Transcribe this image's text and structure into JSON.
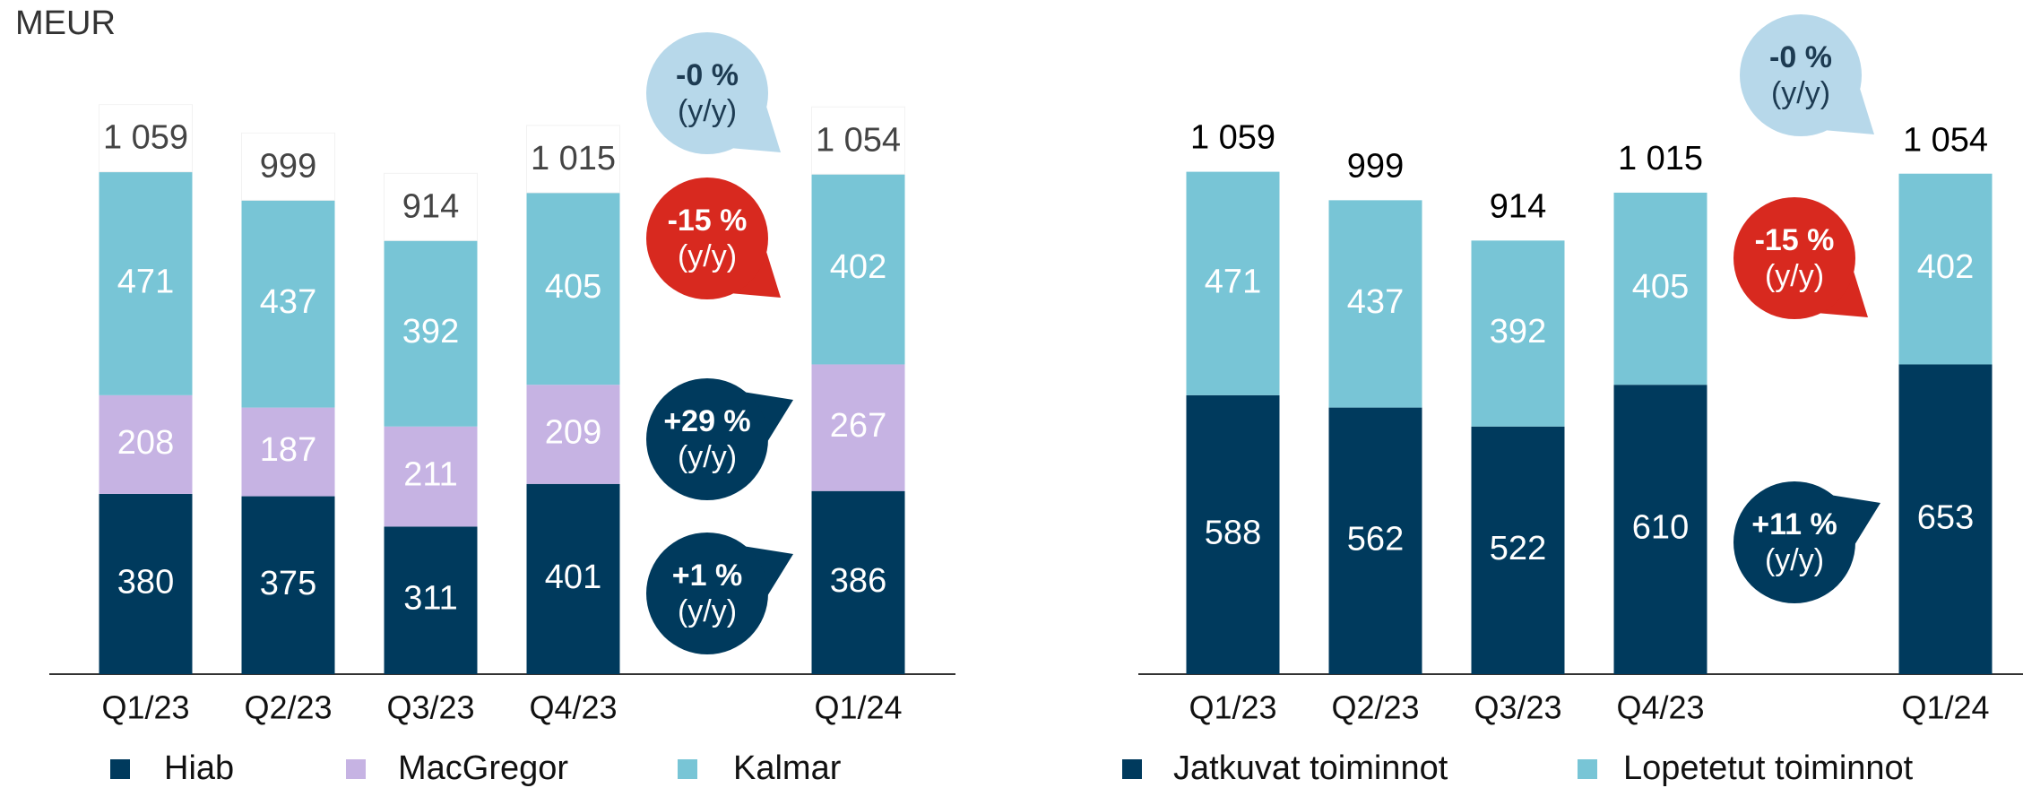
{
  "unit_label": "MEUR",
  "chart_data": [
    {
      "type": "stacked_bar",
      "categories": [
        "Q1/23",
        "Q2/23",
        "Q3/23",
        "Q4/23",
        null,
        "Q1/24"
      ],
      "series": [
        {
          "name": "Hiab",
          "color": "#003a5d",
          "values": [
            380,
            375,
            311,
            401,
            null,
            386
          ]
        },
        {
          "name": "MacGregor",
          "color": "#c6b3e3",
          "values": [
            208,
            187,
            211,
            209,
            null,
            267
          ]
        },
        {
          "name": "Kalmar",
          "color": "#78c5d6",
          "values": [
            471,
            437,
            392,
            405,
            null,
            402
          ]
        }
      ],
      "totals": [
        1059,
        999,
        914,
        1015,
        null,
        1054
      ],
      "total_labels": [
        "1 059",
        "999",
        "914",
        "1 015",
        null,
        "1 054"
      ],
      "ylim": [
        0,
        1200
      ],
      "annotations": [
        {
          "text": "-0 %",
          "subtext": "(y/y)",
          "color": "#b7d8ea"
        },
        {
          "text": "-15 %",
          "subtext": "(y/y)",
          "color": "#d8291f"
        },
        {
          "text": "+29 %",
          "subtext": "(y/y)",
          "color": "#003a5d"
        },
        {
          "text": "+1 %",
          "subtext": "(y/y)",
          "color": "#003a5d"
        }
      ]
    },
    {
      "type": "stacked_bar",
      "categories": [
        "Q1/23",
        "Q2/23",
        "Q3/23",
        "Q4/23",
        null,
        "Q1/24"
      ],
      "series": [
        {
          "name": "Jatkuvat toiminnot",
          "color": "#003a5d",
          "values": [
            588,
            562,
            522,
            610,
            null,
            653
          ]
        },
        {
          "name": "Lopetetut toiminnot",
          "color": "#78c5d6",
          "values": [
            471,
            437,
            392,
            405,
            null,
            402
          ]
        }
      ],
      "totals": [
        1059,
        999,
        914,
        1015,
        null,
        1054
      ],
      "total_labels": [
        "1 059",
        "999",
        "914",
        "1 015",
        null,
        "1 054"
      ],
      "ylim": [
        0,
        1200
      ],
      "annotations": [
        {
          "text": "-0 %",
          "subtext": "(y/y)",
          "color": "#b7d8ea"
        },
        {
          "text": "-15 %",
          "subtext": "(y/y)",
          "color": "#d8291f"
        },
        {
          "text": "+11 %",
          "subtext": "(y/y)",
          "color": "#003a5d"
        }
      ]
    }
  ]
}
